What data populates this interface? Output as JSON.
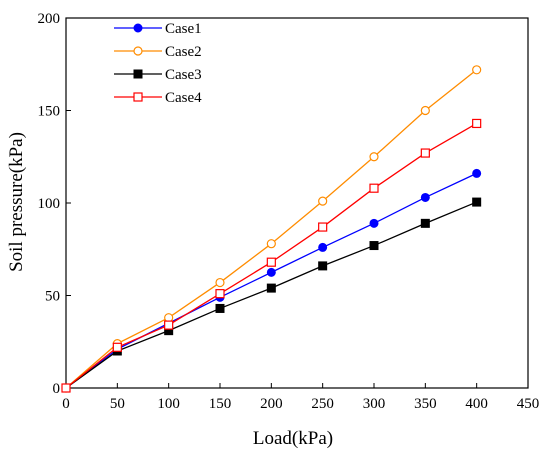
{
  "chart_data": {
    "type": "line",
    "xlabel": "Load(kPa)",
    "ylabel": "Soil pressure(kPa)",
    "xlim": [
      0,
      450
    ],
    "ylim": [
      0,
      200
    ],
    "xticks": [
      0,
      50,
      100,
      150,
      200,
      250,
      300,
      350,
      400,
      450
    ],
    "yticks": [
      0,
      50,
      100,
      150,
      200
    ],
    "grid": false,
    "legend_position": "top-left",
    "x": [
      0,
      50,
      100,
      150,
      200,
      250,
      300,
      350,
      400
    ],
    "series": [
      {
        "name": "Case1",
        "color": "#0000ff",
        "marker": "filled-circle",
        "values": [
          0,
          21,
          35,
          49,
          62.5,
          76,
          89,
          103,
          116
        ]
      },
      {
        "name": "Case2",
        "color": "#ff8c00",
        "marker": "open-circle",
        "values": [
          0,
          24,
          38,
          57,
          78,
          101,
          125,
          150,
          172
        ]
      },
      {
        "name": "Case3",
        "color": "#000000",
        "marker": "filled-square",
        "values": [
          0,
          20,
          31,
          43,
          54,
          66,
          77,
          89,
          100.5
        ]
      },
      {
        "name": "Case4",
        "color": "#ff0000",
        "marker": "open-square",
        "values": [
          0,
          22,
          34,
          51,
          68,
          87,
          108,
          127,
          143
        ]
      }
    ]
  }
}
